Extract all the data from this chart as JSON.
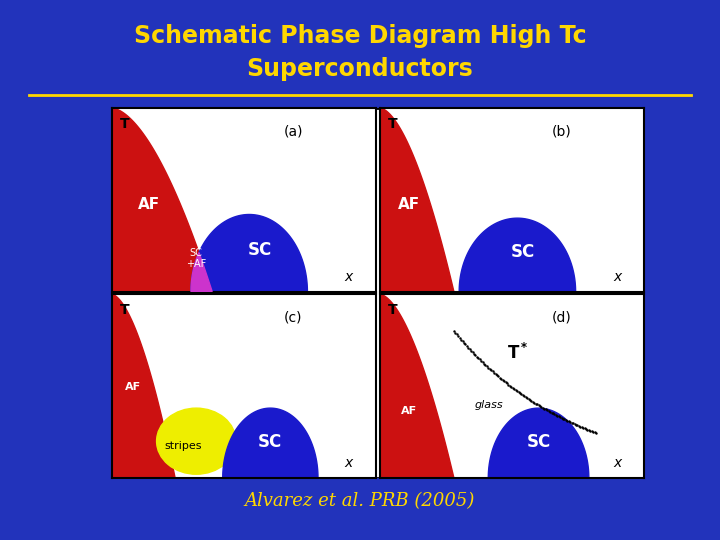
{
  "bg_color": "#2233bb",
  "title_line1": "Schematic Phase Diagram High Tc",
  "title_line2": "Superconductors",
  "title_color": "#FFD700",
  "subtitle": "Alvarez et al. PRB (2005)",
  "subtitle_color": "#FFD700",
  "panel_bg": "#ffffff",
  "af_color": "#cc1111",
  "sc_color": "#1a1acc",
  "scaf_color": "#cc33cc",
  "stripe_color": "#eeee00",
  "line_color": "#FFD700"
}
